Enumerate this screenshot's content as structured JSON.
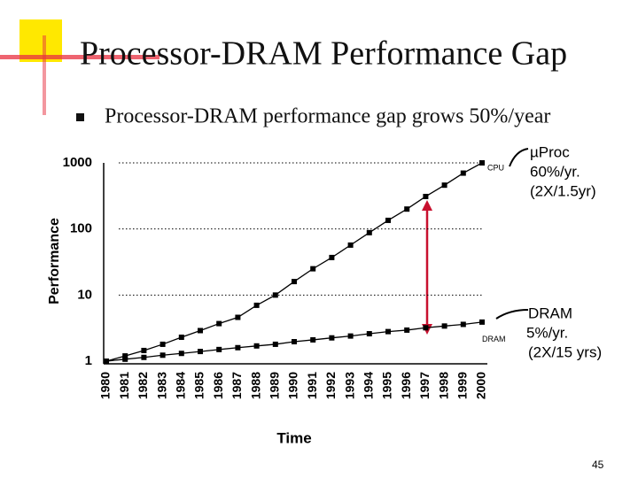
{
  "title": "Processor-DRAM Performance Gap",
  "bullet": "Processor-DRAM performance gap grows 50%/year",
  "page_number": "45",
  "chart_data": {
    "type": "line",
    "x_label": "Time",
    "y_label": "Performance",
    "categories": [
      "1980",
      "1981",
      "1982",
      "1983",
      "1984",
      "1985",
      "1986",
      "1987",
      "1988",
      "1989",
      "1990",
      "1991",
      "1992",
      "1993",
      "1994",
      "1995",
      "1996",
      "1997",
      "1998",
      "1999",
      "2000"
    ],
    "series": [
      {
        "name": "CPU",
        "color": "#000000",
        "values": [
          1,
          1.2,
          1.45,
          1.8,
          2.3,
          2.9,
          3.7,
          4.6,
          7,
          10,
          16,
          25,
          37,
          57,
          88,
          135,
          200,
          310,
          460,
          700,
          1000
        ]
      },
      {
        "name": "DRAM",
        "color": "#000000",
        "values": [
          1,
          1.07,
          1.14,
          1.23,
          1.31,
          1.4,
          1.5,
          1.6,
          1.7,
          1.8,
          1.97,
          2.1,
          2.25,
          2.4,
          2.6,
          2.8,
          2.95,
          3.2,
          3.4,
          3.6,
          3.9
        ]
      }
    ],
    "log_scale": true,
    "ylim": [
      1,
      1000
    ],
    "yticks": [
      1,
      10,
      100,
      1000
    ],
    "grid": true,
    "annotations": [
      {
        "lines": [
          "µProc",
          "60%/yr.",
          "(2X/1.5yr)"
        ]
      },
      {
        "lines": [
          "DRAM",
          "5%/yr.",
          "(2X/15 yrs)"
        ]
      }
    ]
  }
}
